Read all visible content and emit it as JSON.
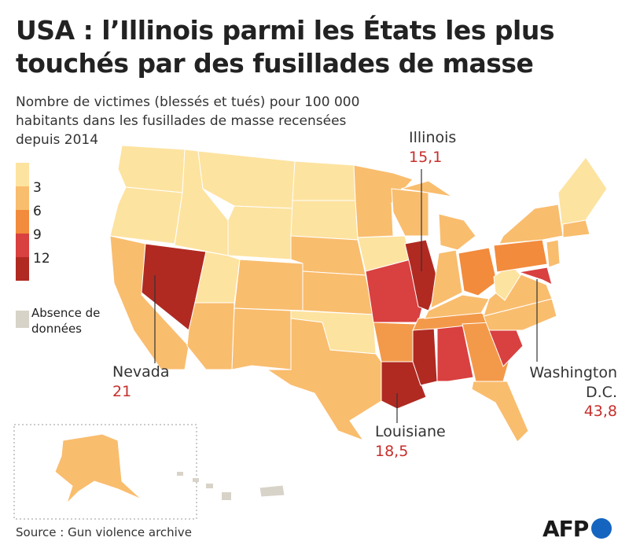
{
  "header": {
    "title": "USA : l’Illinois parmi les États les plus touchés par des fusillades de masse",
    "subtitle": "Nombre de victimes (blessés et tués) pour 100 000 habitants dans les fusillades de masse recensées depuis 2014"
  },
  "legend": {
    "ticks": [
      "3",
      "6",
      "9",
      "12"
    ],
    "no_data": "Absence de données"
  },
  "annotations": [
    {
      "label": "Illinois",
      "value": "15,1"
    },
    {
      "label": "Nevada",
      "value": "21"
    },
    {
      "label": "Louisiane",
      "value": "18,5"
    },
    {
      "label": "Washington D.C.",
      "value": "43,8"
    }
  ],
  "source": "Source : Gun violence archive",
  "logo": "AFP"
}
